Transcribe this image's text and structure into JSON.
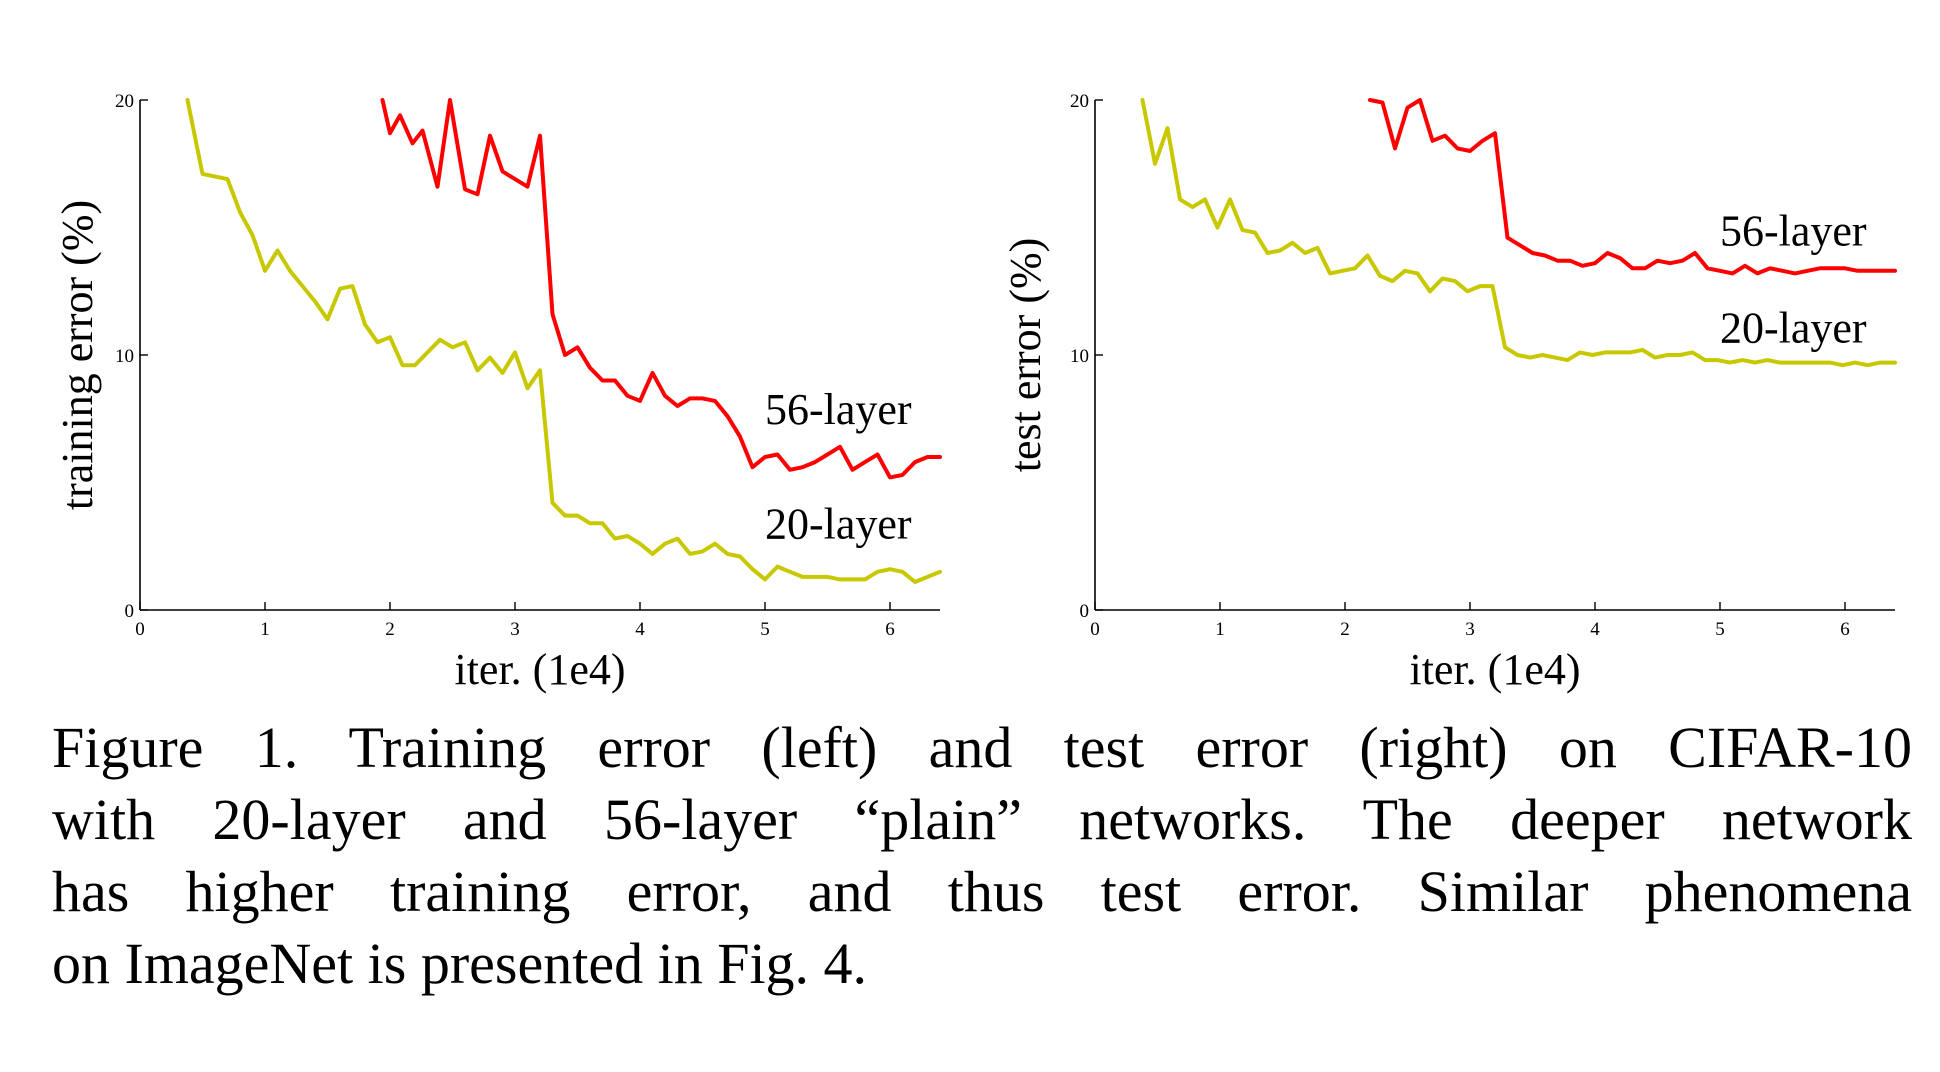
{
  "chart_data": [
    {
      "type": "line",
      "ylabel": "training error (%)",
      "xlabel": "iter. (1e4)",
      "xlim": [
        0,
        6.4
      ],
      "ylim": [
        0,
        20
      ],
      "xticks": [
        "0",
        "1",
        "2",
        "3",
        "4",
        "5",
        "6"
      ],
      "yticks": [
        "0",
        "10",
        "20"
      ],
      "grid": false,
      "series": [
        {
          "name": "56-layer",
          "color": "#ff0000",
          "x": [
            1.94,
            2.0,
            2.08,
            2.18,
            2.26,
            2.38,
            2.48,
            2.6,
            2.7,
            2.8,
            2.9,
            3.0,
            3.1,
            3.2,
            3.3,
            3.4,
            3.5,
            3.6,
            3.7,
            3.8,
            3.9,
            4.0,
            4.1,
            4.2,
            4.3,
            4.4,
            4.5,
            4.6,
            4.7,
            4.8,
            4.9,
            5.0,
            5.1,
            5.2,
            5.3,
            5.4,
            5.5,
            5.6,
            5.7,
            5.8,
            5.9,
            6.0,
            6.1,
            6.2,
            6.3,
            6.4
          ],
          "values": [
            20.0,
            18.7,
            19.4,
            18.3,
            18.8,
            16.6,
            20.0,
            16.5,
            16.3,
            18.6,
            17.2,
            16.9,
            16.6,
            18.6,
            11.6,
            10.0,
            10.3,
            9.5,
            9.0,
            9.0,
            8.4,
            8.2,
            9.3,
            8.4,
            8.0,
            8.3,
            8.3,
            8.2,
            7.6,
            6.8,
            5.6,
            6.0,
            6.1,
            5.5,
            5.6,
            5.8,
            6.1,
            6.4,
            5.5,
            5.8,
            6.1,
            5.2,
            5.3,
            5.8,
            6.0,
            6.0
          ],
          "label_x": 5.0,
          "label_y": 7.3
        },
        {
          "name": "20-layer",
          "color": "#c8c800",
          "x": [
            0.38,
            0.5,
            0.7,
            0.8,
            0.9,
            1.0,
            1.1,
            1.2,
            1.3,
            1.4,
            1.5,
            1.6,
            1.7,
            1.8,
            1.9,
            2.0,
            2.1,
            2.2,
            2.3,
            2.4,
            2.5,
            2.6,
            2.7,
            2.8,
            2.9,
            3.0,
            3.1,
            3.2,
            3.3,
            3.4,
            3.5,
            3.6,
            3.7,
            3.8,
            3.9,
            4.0,
            4.1,
            4.2,
            4.3,
            4.4,
            4.5,
            4.6,
            4.7,
            4.8,
            4.9,
            5.0,
            5.1,
            5.2,
            5.3,
            5.4,
            5.5,
            5.6,
            5.7,
            5.8,
            5.9,
            6.0,
            6.1,
            6.2,
            6.3,
            6.4
          ],
          "values": [
            20.0,
            17.1,
            16.9,
            15.6,
            14.7,
            13.3,
            14.1,
            13.3,
            12.7,
            12.1,
            11.4,
            12.6,
            12.7,
            11.2,
            10.5,
            10.7,
            9.6,
            9.6,
            10.1,
            10.6,
            10.3,
            10.5,
            9.4,
            9.9,
            9.3,
            10.1,
            8.7,
            9.4,
            4.2,
            3.7,
            3.7,
            3.4,
            3.4,
            2.8,
            2.9,
            2.6,
            2.2,
            2.6,
            2.8,
            2.2,
            2.3,
            2.6,
            2.2,
            2.1,
            1.6,
            1.2,
            1.7,
            1.5,
            1.3,
            1.3,
            1.3,
            1.2,
            1.2,
            1.2,
            1.5,
            1.6,
            1.5,
            1.1,
            1.3,
            1.5
          ],
          "label_x": 5.0,
          "label_y": 2.8
        }
      ]
    },
    {
      "type": "line",
      "ylabel": "test error (%)",
      "xlabel": "iter. (1e4)",
      "xlim": [
        0,
        6.4
      ],
      "ylim": [
        0,
        20
      ],
      "xticks": [
        "0",
        "1",
        "2",
        "3",
        "4",
        "5",
        "6"
      ],
      "yticks": [
        "0",
        "10",
        "20"
      ],
      "grid": false,
      "series": [
        {
          "name": "56-layer",
          "color": "#ff0000",
          "x": [
            2.2,
            2.3,
            2.4,
            2.5,
            2.6,
            2.7,
            2.8,
            2.9,
            3.0,
            3.1,
            3.2,
            3.3,
            3.4,
            3.5,
            3.6,
            3.7,
            3.8,
            3.9,
            4.0,
            4.1,
            4.2,
            4.3,
            4.4,
            4.5,
            4.6,
            4.7,
            4.8,
            4.9,
            5.0,
            5.1,
            5.2,
            5.3,
            5.4,
            5.5,
            5.6,
            5.7,
            5.8,
            5.9,
            6.0,
            6.1,
            6.2,
            6.3,
            6.4
          ],
          "values": [
            20.0,
            19.9,
            18.1,
            19.7,
            20.0,
            18.4,
            18.6,
            18.1,
            18.0,
            18.4,
            18.7,
            14.6,
            14.3,
            14.0,
            13.9,
            13.7,
            13.7,
            13.5,
            13.6,
            14.0,
            13.8,
            13.4,
            13.4,
            13.7,
            13.6,
            13.7,
            14.0,
            13.4,
            13.3,
            13.2,
            13.5,
            13.2,
            13.4,
            13.3,
            13.2,
            13.3,
            13.4,
            13.4,
            13.4,
            13.3,
            13.3,
            13.3,
            13.3
          ],
          "label_x": 5.0,
          "label_y": 14.3
        },
        {
          "name": "20-layer",
          "color": "#c8c800",
          "x": [
            0.38,
            0.48,
            0.58,
            0.68,
            0.78,
            0.88,
            0.98,
            1.08,
            1.18,
            1.28,
            1.38,
            1.48,
            1.58,
            1.68,
            1.78,
            1.88,
            1.98,
            2.08,
            2.18,
            2.28,
            2.38,
            2.48,
            2.58,
            2.68,
            2.78,
            2.88,
            2.98,
            3.08,
            3.18,
            3.28,
            3.38,
            3.48,
            3.58,
            3.68,
            3.78,
            3.88,
            3.98,
            4.08,
            4.18,
            4.28,
            4.38,
            4.48,
            4.58,
            4.68,
            4.78,
            4.88,
            4.98,
            5.08,
            5.18,
            5.28,
            5.38,
            5.48,
            5.58,
            5.68,
            5.78,
            5.88,
            5.98,
            6.08,
            6.18,
            6.28,
            6.4
          ],
          "values": [
            20.0,
            17.5,
            18.9,
            16.1,
            15.8,
            16.1,
            15.0,
            16.1,
            14.9,
            14.8,
            14.0,
            14.1,
            14.4,
            14.0,
            14.2,
            13.2,
            13.3,
            13.4,
            13.9,
            13.1,
            12.9,
            13.3,
            13.2,
            12.5,
            13.0,
            12.9,
            12.5,
            12.7,
            12.7,
            10.3,
            10.0,
            9.9,
            10.0,
            9.9,
            9.8,
            10.1,
            10.0,
            10.1,
            10.1,
            10.1,
            10.2,
            9.9,
            10.0,
            10.0,
            10.1,
            9.8,
            9.8,
            9.7,
            9.8,
            9.7,
            9.8,
            9.7,
            9.7,
            9.7,
            9.7,
            9.7,
            9.6,
            9.7,
            9.6,
            9.7,
            9.7
          ],
          "label_x": 5.0,
          "label_y": 10.5
        }
      ]
    }
  ],
  "caption": {
    "lines": [
      "Figure 1. Training error (left) and test error (right) on CIFAR-10",
      "with 20-layer and 56-layer “plain” networks. The deeper network",
      "has higher training error, and thus test error.  Similar phenomena",
      "on ImageNet is presented in Fig. 4."
    ]
  }
}
